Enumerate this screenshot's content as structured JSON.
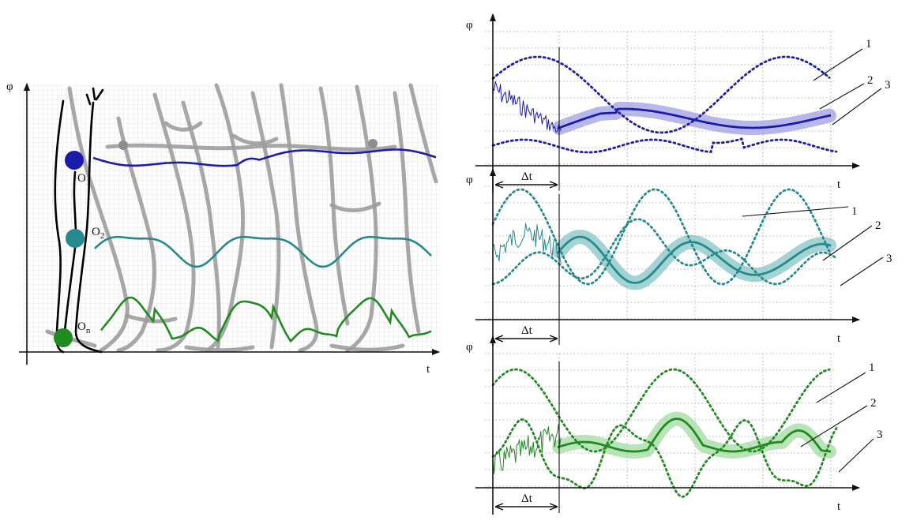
{
  "colors": {
    "blue": "#1c1cab",
    "blue_band": "#9f9fe6",
    "teal": "#268a8c",
    "teal_band": "#86c4c4",
    "green": "#218a21",
    "green_band": "#a2d9a2"
  },
  "left_panel": {
    "y_axis_label": "φ",
    "x_axis_label": "t",
    "joints": [
      {
        "label": "O",
        "subscript": "1",
        "color": "#1c1cab"
      },
      {
        "label": "O",
        "subscript": "2",
        "color": "#268a8c"
      },
      {
        "label": "O",
        "subscript": "n",
        "color": "#218a21"
      }
    ]
  },
  "right_panels": [
    {
      "y_axis_label": "φ",
      "x_axis_label": "t",
      "interval_label": "Δt",
      "callouts": [
        "1",
        "2",
        "3"
      ],
      "color": "#1c1cab",
      "band": "#9f9fe6"
    },
    {
      "y_axis_label": "φ",
      "x_axis_label": "t",
      "interval_label": "Δt",
      "callouts": [
        "1",
        "2",
        "3"
      ],
      "color": "#268a8c",
      "band": "#86c4c4"
    },
    {
      "y_axis_label": "φ",
      "x_axis_label": "t",
      "interval_label": "Δt",
      "callouts": [
        "1",
        "2",
        "3"
      ],
      "color": "#218a21",
      "band": "#a2d9a2"
    }
  ]
}
